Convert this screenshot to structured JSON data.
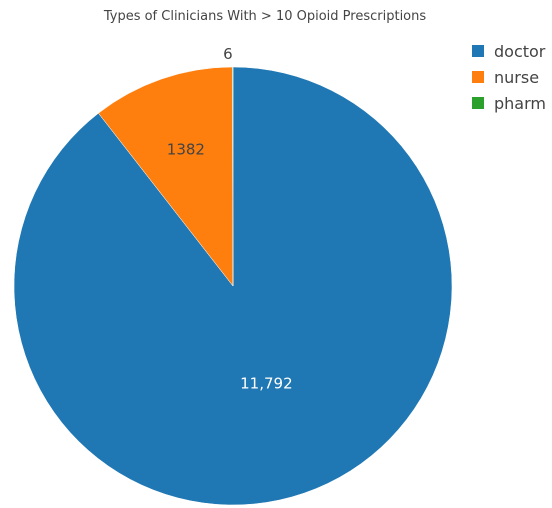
{
  "chart_data": {
    "type": "pie",
    "title": "Types of Clinicians With > 10 Opioid Prescriptions",
    "categories": [
      "doctor",
      "nurse",
      "pharm"
    ],
    "values": [
      11792,
      1382,
      6
    ],
    "value_labels": [
      "11,792",
      "1382",
      "6"
    ],
    "colors": [
      "#1f77b4",
      "#ff7f0e",
      "#2ca02c"
    ],
    "label_colors": [
      "#ffffff",
      "#444444",
      "#444444"
    ],
    "legend_position": "top-right",
    "direction": "clockwise",
    "start_angle": "12 o'clock"
  }
}
